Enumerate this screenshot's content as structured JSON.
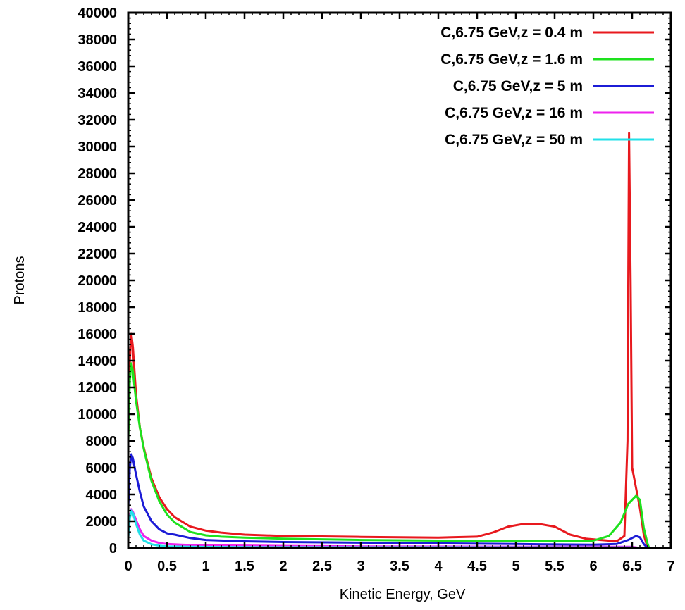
{
  "chart_data": {
    "type": "line",
    "xlabel": "Kinetic Energy, GeV",
    "ylabel": "Protons",
    "xlim": [
      0,
      7
    ],
    "ylim": [
      0,
      40000
    ],
    "xticks": [
      0,
      0.5,
      1,
      1.5,
      2,
      2.5,
      3,
      3.5,
      4,
      4.5,
      5,
      5.5,
      6,
      6.5,
      7
    ],
    "yticks": [
      0,
      2000,
      4000,
      6000,
      8000,
      10000,
      12000,
      14000,
      16000,
      18000,
      20000,
      22000,
      24000,
      26000,
      28000,
      30000,
      32000,
      34000,
      36000,
      38000,
      40000
    ],
    "grid": false,
    "legend_position": "top-right",
    "series": [
      {
        "name": "C,6.75 GeV,z = 0.4 m",
        "color": "#e8191e",
        "points": [
          [
            0,
            9000
          ],
          [
            0.02,
            14000
          ],
          [
            0.04,
            16000
          ],
          [
            0.06,
            15000
          ],
          [
            0.1,
            11500
          ],
          [
            0.15,
            9000
          ],
          [
            0.2,
            7500
          ],
          [
            0.3,
            5200
          ],
          [
            0.4,
            3800
          ],
          [
            0.5,
            2900
          ],
          [
            0.6,
            2300
          ],
          [
            0.8,
            1600
          ],
          [
            1.0,
            1300
          ],
          [
            1.2,
            1150
          ],
          [
            1.5,
            1000
          ],
          [
            2.0,
            900
          ],
          [
            2.5,
            870
          ],
          [
            3.0,
            830
          ],
          [
            3.5,
            800
          ],
          [
            4.0,
            780
          ],
          [
            4.5,
            850
          ],
          [
            4.7,
            1150
          ],
          [
            4.9,
            1600
          ],
          [
            5.1,
            1800
          ],
          [
            5.3,
            1800
          ],
          [
            5.5,
            1600
          ],
          [
            5.7,
            1000
          ],
          [
            5.9,
            700
          ],
          [
            6.1,
            600
          ],
          [
            6.3,
            500
          ],
          [
            6.4,
            900
          ],
          [
            6.44,
            8000
          ],
          [
            6.46,
            31000
          ],
          [
            6.48,
            20000
          ],
          [
            6.5,
            6000
          ],
          [
            6.55,
            4500
          ],
          [
            6.6,
            3000
          ],
          [
            6.65,
            1000
          ],
          [
            6.7,
            0
          ]
        ]
      },
      {
        "name": "C,6.75 GeV,z = 1.6 m",
        "color": "#1ee11e",
        "points": [
          [
            0,
            8000
          ],
          [
            0.02,
            12500
          ],
          [
            0.04,
            13800
          ],
          [
            0.06,
            13200
          ],
          [
            0.1,
            11000
          ],
          [
            0.15,
            9000
          ],
          [
            0.2,
            7400
          ],
          [
            0.3,
            5000
          ],
          [
            0.4,
            3500
          ],
          [
            0.5,
            2500
          ],
          [
            0.6,
            1900
          ],
          [
            0.8,
            1200
          ],
          [
            1.0,
            950
          ],
          [
            1.2,
            850
          ],
          [
            1.5,
            780
          ],
          [
            2.0,
            700
          ],
          [
            3.0,
            600
          ],
          [
            4.0,
            550
          ],
          [
            5.0,
            500
          ],
          [
            5.5,
            500
          ],
          [
            6.0,
            550
          ],
          [
            6.2,
            900
          ],
          [
            6.35,
            1900
          ],
          [
            6.45,
            3300
          ],
          [
            6.55,
            3900
          ],
          [
            6.6,
            3600
          ],
          [
            6.65,
            1500
          ],
          [
            6.7,
            300
          ],
          [
            6.72,
            0
          ]
        ]
      },
      {
        "name": "C,6.75 GeV,z = 5 m",
        "color": "#1c1cd6",
        "points": [
          [
            0,
            3000
          ],
          [
            0.02,
            6000
          ],
          [
            0.04,
            7000
          ],
          [
            0.06,
            6700
          ],
          [
            0.1,
            5500
          ],
          [
            0.15,
            4200
          ],
          [
            0.2,
            3100
          ],
          [
            0.3,
            2000
          ],
          [
            0.4,
            1400
          ],
          [
            0.5,
            1100
          ],
          [
            0.6,
            1000
          ],
          [
            0.8,
            750
          ],
          [
            1.0,
            600
          ],
          [
            1.5,
            500
          ],
          [
            2.0,
            450
          ],
          [
            3.0,
            400
          ],
          [
            4.0,
            350
          ],
          [
            5.0,
            300
          ],
          [
            6.0,
            250
          ],
          [
            6.3,
            300
          ],
          [
            6.45,
            600
          ],
          [
            6.55,
            900
          ],
          [
            6.6,
            800
          ],
          [
            6.65,
            300
          ],
          [
            6.7,
            0
          ]
        ]
      },
      {
        "name": "C,6.75 GeV,z = 16 m",
        "color": "#ee22ee",
        "points": [
          [
            0,
            1000
          ],
          [
            0.02,
            2300
          ],
          [
            0.04,
            2900
          ],
          [
            0.06,
            2700
          ],
          [
            0.1,
            2100
          ],
          [
            0.15,
            1400
          ],
          [
            0.2,
            900
          ],
          [
            0.3,
            550
          ],
          [
            0.4,
            380
          ],
          [
            0.5,
            300
          ],
          [
            0.8,
            220
          ],
          [
            1.0,
            200
          ],
          [
            2.0,
            150
          ],
          [
            3.0,
            120
          ],
          [
            5.0,
            100
          ],
          [
            6.5,
            90
          ],
          [
            6.6,
            0
          ]
        ]
      },
      {
        "name": "C,6.75 GeV,z = 50 m",
        "color": "#22e0e8",
        "points": [
          [
            0,
            800
          ],
          [
            0.02,
            2200
          ],
          [
            0.04,
            2800
          ],
          [
            0.06,
            2600
          ],
          [
            0.1,
            1800
          ],
          [
            0.15,
            1000
          ],
          [
            0.2,
            550
          ],
          [
            0.3,
            280
          ],
          [
            0.4,
            180
          ],
          [
            0.5,
            120
          ],
          [
            1.0,
            80
          ],
          [
            2.0,
            60
          ],
          [
            4.0,
            50
          ],
          [
            6.5,
            40
          ],
          [
            6.6,
            0
          ]
        ]
      }
    ]
  }
}
